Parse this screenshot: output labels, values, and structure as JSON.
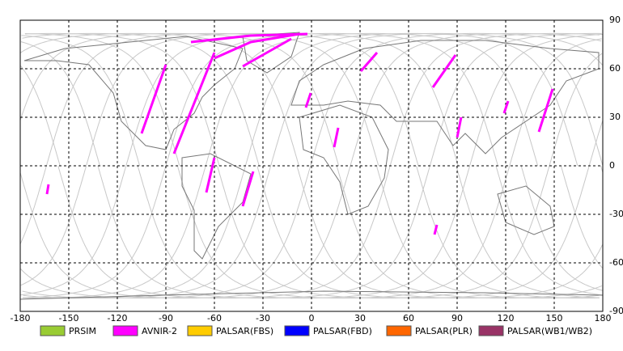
{
  "chart_data": {
    "type": "map",
    "xlim": [
      -180,
      180
    ],
    "ylim": [
      -90,
      90
    ],
    "xticks": [
      -180,
      -150,
      -120,
      -90,
      -60,
      -30,
      0,
      30,
      60,
      90,
      120,
      150,
      180
    ],
    "yticks": [
      90,
      60,
      30,
      0,
      -30,
      -60,
      -90
    ],
    "grid": true,
    "series": [
      {
        "name": "PRSIM",
        "color": "#99cc33"
      },
      {
        "name": "AVNIR-2",
        "color": "#ff00ff",
        "segments": [
          {
            "x": [
              -74.5,
              -37.5,
              -2.5
            ],
            "y": [
              76.5,
              80.5,
              81.5
            ]
          },
          {
            "x": [
              -60,
              -37.5,
              -7.5
            ],
            "y": [
              66.5,
              76.5,
              81.5
            ]
          },
          {
            "x": [
              -42.5,
              -12.5
            ],
            "y": [
              61.5,
              78.5
            ]
          },
          {
            "x": [
              -105,
              -90
            ],
            "y": [
              20,
              62.5
            ]
          },
          {
            "x": [
              -85,
              -60
            ],
            "y": [
              7.5,
              70
            ]
          },
          {
            "x": [
              -65,
              -60
            ],
            "y": [
              -16.5,
              5
            ]
          },
          {
            "x": [
              -42.5,
              -36
            ],
            "y": [
              -25,
              -3.5
            ]
          },
          {
            "x": [
              -163.5,
              -162.5
            ],
            "y": [
              -17.5,
              -11.5
            ]
          },
          {
            "x": [
              -3.5,
              -0.5
            ],
            "y": [
              36,
              45
            ]
          },
          {
            "x": [
              14,
              16.5
            ],
            "y": [
              11.5,
              23.5
            ]
          },
          {
            "x": [
              30.5,
              40.5
            ],
            "y": [
              58.5,
              70
            ]
          },
          {
            "x": [
              75,
              89
            ],
            "y": [
              48.5,
              68.5
            ]
          },
          {
            "x": [
              90,
              92.5
            ],
            "y": [
              17.5,
              30
            ]
          },
          {
            "x": [
              76,
              77.5
            ],
            "y": [
              -42.5,
              -36.5
            ]
          },
          {
            "x": [
              119,
              121.5
            ],
            "y": [
              32.5,
              40
            ]
          },
          {
            "x": [
              140.5,
              149
            ],
            "y": [
              21,
              47.5
            ]
          }
        ]
      },
      {
        "name": "PALSAR(FBS)",
        "color": "#ffcc00"
      },
      {
        "name": "PALSAR(FBD)",
        "color": "#0000ff"
      },
      {
        "name": "PALSAR(PLR)",
        "color": "#ff6600"
      },
      {
        "name": "PALSAR(WB1/WB2)",
        "color": "#993366"
      }
    ]
  }
}
